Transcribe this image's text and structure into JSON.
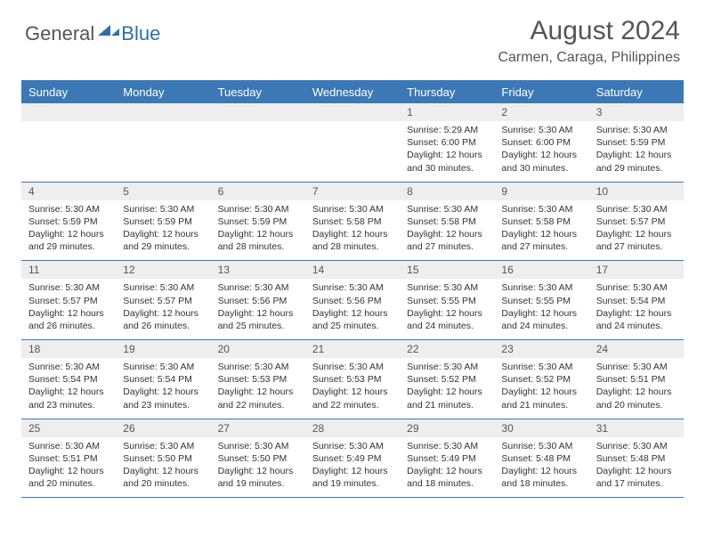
{
  "logo": {
    "general": "General",
    "blue": "Blue",
    "mark_color": "#2f6fa8"
  },
  "title": "August 2024",
  "location": "Carmen, Caraga, Philippines",
  "header_bg": "#3b78b5",
  "header_fg": "#ffffff",
  "daynum_bg": "#eeeeee",
  "border_color": "#3b78b5",
  "weekdays": [
    "Sunday",
    "Monday",
    "Tuesday",
    "Wednesday",
    "Thursday",
    "Friday",
    "Saturday"
  ],
  "weeks": [
    {
      "nums": [
        "",
        "",
        "",
        "",
        "1",
        "2",
        "3"
      ],
      "details": [
        "",
        "",
        "",
        "",
        "Sunrise: 5:29 AM\nSunset: 6:00 PM\nDaylight: 12 hours and 30 minutes.",
        "Sunrise: 5:30 AM\nSunset: 6:00 PM\nDaylight: 12 hours and 30 minutes.",
        "Sunrise: 5:30 AM\nSunset: 5:59 PM\nDaylight: 12 hours and 29 minutes."
      ]
    },
    {
      "nums": [
        "4",
        "5",
        "6",
        "7",
        "8",
        "9",
        "10"
      ],
      "details": [
        "Sunrise: 5:30 AM\nSunset: 5:59 PM\nDaylight: 12 hours and 29 minutes.",
        "Sunrise: 5:30 AM\nSunset: 5:59 PM\nDaylight: 12 hours and 29 minutes.",
        "Sunrise: 5:30 AM\nSunset: 5:59 PM\nDaylight: 12 hours and 28 minutes.",
        "Sunrise: 5:30 AM\nSunset: 5:58 PM\nDaylight: 12 hours and 28 minutes.",
        "Sunrise: 5:30 AM\nSunset: 5:58 PM\nDaylight: 12 hours and 27 minutes.",
        "Sunrise: 5:30 AM\nSunset: 5:58 PM\nDaylight: 12 hours and 27 minutes.",
        "Sunrise: 5:30 AM\nSunset: 5:57 PM\nDaylight: 12 hours and 27 minutes."
      ]
    },
    {
      "nums": [
        "11",
        "12",
        "13",
        "14",
        "15",
        "16",
        "17"
      ],
      "details": [
        "Sunrise: 5:30 AM\nSunset: 5:57 PM\nDaylight: 12 hours and 26 minutes.",
        "Sunrise: 5:30 AM\nSunset: 5:57 PM\nDaylight: 12 hours and 26 minutes.",
        "Sunrise: 5:30 AM\nSunset: 5:56 PM\nDaylight: 12 hours and 25 minutes.",
        "Sunrise: 5:30 AM\nSunset: 5:56 PM\nDaylight: 12 hours and 25 minutes.",
        "Sunrise: 5:30 AM\nSunset: 5:55 PM\nDaylight: 12 hours and 24 minutes.",
        "Sunrise: 5:30 AM\nSunset: 5:55 PM\nDaylight: 12 hours and 24 minutes.",
        "Sunrise: 5:30 AM\nSunset: 5:54 PM\nDaylight: 12 hours and 24 minutes."
      ]
    },
    {
      "nums": [
        "18",
        "19",
        "20",
        "21",
        "22",
        "23",
        "24"
      ],
      "details": [
        "Sunrise: 5:30 AM\nSunset: 5:54 PM\nDaylight: 12 hours and 23 minutes.",
        "Sunrise: 5:30 AM\nSunset: 5:54 PM\nDaylight: 12 hours and 23 minutes.",
        "Sunrise: 5:30 AM\nSunset: 5:53 PM\nDaylight: 12 hours and 22 minutes.",
        "Sunrise: 5:30 AM\nSunset: 5:53 PM\nDaylight: 12 hours and 22 minutes.",
        "Sunrise: 5:30 AM\nSunset: 5:52 PM\nDaylight: 12 hours and 21 minutes.",
        "Sunrise: 5:30 AM\nSunset: 5:52 PM\nDaylight: 12 hours and 21 minutes.",
        "Sunrise: 5:30 AM\nSunset: 5:51 PM\nDaylight: 12 hours and 20 minutes."
      ]
    },
    {
      "nums": [
        "25",
        "26",
        "27",
        "28",
        "29",
        "30",
        "31"
      ],
      "details": [
        "Sunrise: 5:30 AM\nSunset: 5:51 PM\nDaylight: 12 hours and 20 minutes.",
        "Sunrise: 5:30 AM\nSunset: 5:50 PM\nDaylight: 12 hours and 20 minutes.",
        "Sunrise: 5:30 AM\nSunset: 5:50 PM\nDaylight: 12 hours and 19 minutes.",
        "Sunrise: 5:30 AM\nSunset: 5:49 PM\nDaylight: 12 hours and 19 minutes.",
        "Sunrise: 5:30 AM\nSunset: 5:49 PM\nDaylight: 12 hours and 18 minutes.",
        "Sunrise: 5:30 AM\nSunset: 5:48 PM\nDaylight: 12 hours and 18 minutes.",
        "Sunrise: 5:30 AM\nSunset: 5:48 PM\nDaylight: 12 hours and 17 minutes."
      ]
    }
  ]
}
